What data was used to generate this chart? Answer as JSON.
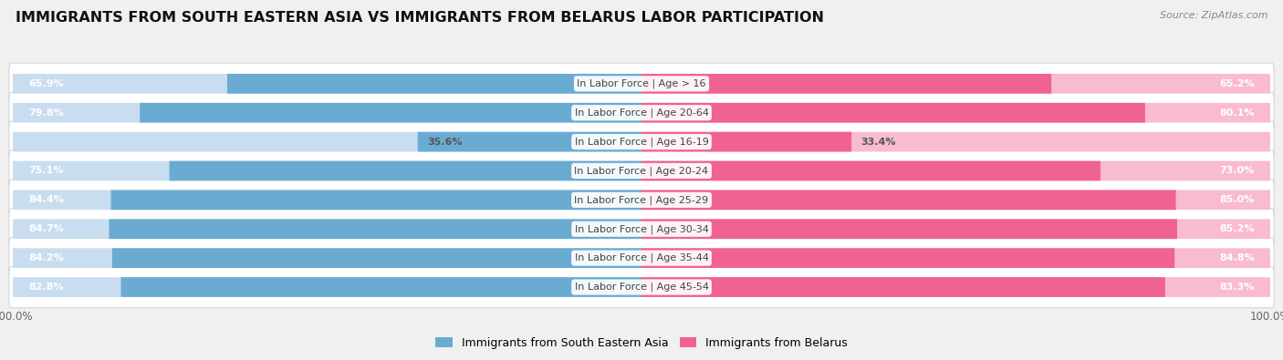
{
  "title": "IMMIGRANTS FROM SOUTH EASTERN ASIA VS IMMIGRANTS FROM BELARUS LABOR PARTICIPATION",
  "source": "Source: ZipAtlas.com",
  "categories": [
    "In Labor Force | Age > 16",
    "In Labor Force | Age 20-64",
    "In Labor Force | Age 16-19",
    "In Labor Force | Age 20-24",
    "In Labor Force | Age 25-29",
    "In Labor Force | Age 30-34",
    "In Labor Force | Age 35-44",
    "In Labor Force | Age 45-54"
  ],
  "left_values": [
    65.9,
    79.8,
    35.6,
    75.1,
    84.4,
    84.7,
    84.2,
    82.8
  ],
  "right_values": [
    65.2,
    80.1,
    33.4,
    73.0,
    85.0,
    85.2,
    84.8,
    83.3
  ],
  "left_color": "#6aabd2",
  "left_color_light": "#c9ddf0",
  "right_color": "#f06292",
  "right_color_light": "#f8bbd0",
  "bar_height": 0.68,
  "background_color": "#f0f0f0",
  "title_fontsize": 11.5,
  "source_fontsize": 8,
  "label_fontsize": 8,
  "value_fontsize": 8,
  "legend_label_left": "Immigrants from South Eastern Asia",
  "legend_label_right": "Immigrants from Belarus",
  "max_value": 100.0,
  "small_threshold": 50
}
